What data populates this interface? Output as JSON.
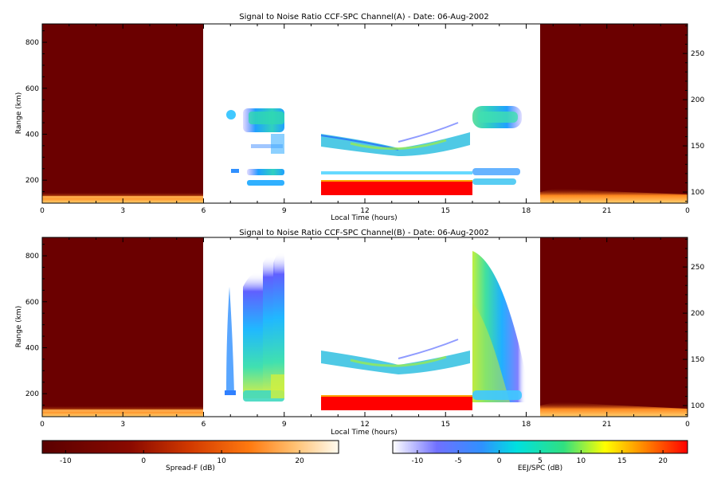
{
  "chart_data": [
    {
      "type": "heatmap",
      "title": "Signal to Noise Ratio CCF-SPC Channel(A) - Date: 06-Aug-2002",
      "xlabel": "Local Time (hours)",
      "ylabel": "Range (km)",
      "xlim": [
        0,
        24
      ],
      "ylim": [
        100,
        880
      ],
      "y2lim": [
        88,
        282
      ],
      "x_ticks": [
        "0",
        "3",
        "6",
        "9",
        "12",
        "15",
        "18",
        "21",
        "0"
      ],
      "y_ticks": [
        "200",
        "400",
        "600",
        "800"
      ],
      "y2_ticks": [
        "100",
        "150",
        "200",
        "250"
      ],
      "regions": [
        {
          "kind": "spread-f",
          "x": [
            0,
            6
          ]
        },
        {
          "kind": "eej-spc",
          "x": [
            6,
            18.5
          ]
        },
        {
          "kind": "spread-f",
          "x": [
            18.5,
            24
          ]
        }
      ]
    },
    {
      "type": "heatmap",
      "title": "Signal to Noise Ratio CCF-SPC Channel(B) - Date: 06-Aug-2002",
      "xlabel": "Local Time (hours)",
      "ylabel": "Range (km)",
      "xlim": [
        0,
        24
      ],
      "ylim": [
        100,
        880
      ],
      "y2lim": [
        88,
        282
      ],
      "x_ticks": [
        "0",
        "3",
        "6",
        "9",
        "12",
        "15",
        "18",
        "21",
        "0"
      ],
      "y_ticks": [
        "200",
        "400",
        "600",
        "800"
      ],
      "y2_ticks": [
        "100",
        "150",
        "200",
        "250"
      ],
      "regions": [
        {
          "kind": "spread-f",
          "x": [
            0,
            6
          ]
        },
        {
          "kind": "eej-spc",
          "x": [
            6,
            18.5
          ]
        },
        {
          "kind": "spread-f",
          "x": [
            18.5,
            24
          ]
        }
      ]
    }
  ],
  "colorbars": [
    {
      "label": "Spread-F (dB)",
      "range": [
        -13,
        25
      ],
      "ticks": [
        "-10",
        "0",
        "10",
        "20"
      ]
    },
    {
      "label": "EEJ/SPC (dB)",
      "range": [
        -13,
        23
      ],
      "ticks": [
        "-10",
        "-5",
        "0",
        "5",
        "10",
        "15",
        "20"
      ]
    }
  ],
  "colors": {
    "spread_f_background": "#6b0000",
    "eej_red": "#ff0000"
  }
}
